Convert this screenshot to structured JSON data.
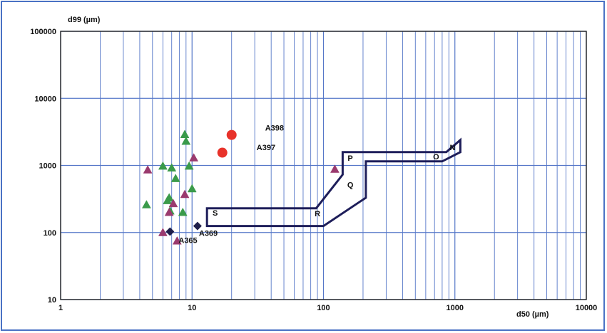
{
  "chart_data": {
    "type": "scatter",
    "title": "",
    "xlabel": "d50 (µm)",
    "ylabel": "d99 (µm)",
    "x_scale": "log",
    "y_scale": "log",
    "xlim": [
      1,
      10000
    ],
    "ylim": [
      10,
      100000
    ],
    "x_ticks": [
      {
        "value": 1,
        "label": "1"
      },
      {
        "value": 10,
        "label": "10"
      },
      {
        "value": 100,
        "label": "100"
      },
      {
        "value": 1000,
        "label": "1000"
      },
      {
        "value": 10000,
        "label": "10000"
      }
    ],
    "y_ticks": [
      {
        "value": 10,
        "label": "10"
      },
      {
        "value": 100,
        "label": "100"
      },
      {
        "value": 1000,
        "label": "1000"
      },
      {
        "value": 10000,
        "label": "10000"
      },
      {
        "value": 100000,
        "label": "100000"
      }
    ],
    "grid": true,
    "colors": {
      "frame": "#4a72c4",
      "grid": "#5577c8",
      "region": "#1e1e5a",
      "green_triangle": "#3a9a4a",
      "purple_triangle": "#9a3a6e",
      "red_circle": "#e8322a",
      "diamond": "#1e1e4a"
    },
    "series": [
      {
        "marker": "triangle",
        "color": "#3a9a4a",
        "points": [
          {
            "x": 4.5,
            "y": 260
          },
          {
            "x": 6.0,
            "y": 980
          },
          {
            "x": 6.5,
            "y": 300
          },
          {
            "x": 6.7,
            "y": 330
          },
          {
            "x": 6.8,
            "y": 210
          },
          {
            "x": 7.0,
            "y": 920
          },
          {
            "x": 7.5,
            "y": 640
          },
          {
            "x": 8.5,
            "y": 200
          },
          {
            "x": 8.8,
            "y": 2900
          },
          {
            "x": 9.0,
            "y": 2300
          },
          {
            "x": 9.5,
            "y": 980
          },
          {
            "x": 10.0,
            "y": 450
          }
        ]
      },
      {
        "marker": "triangle",
        "color": "#9a3a6e",
        "points": [
          {
            "x": 4.6,
            "y": 860
          },
          {
            "x": 6.0,
            "y": 100
          },
          {
            "x": 6.7,
            "y": 200
          },
          {
            "x": 7.2,
            "y": 270
          },
          {
            "x": 7.7,
            "y": 75
          },
          {
            "x": 8.8,
            "y": 370
          },
          {
            "x": 10.3,
            "y": 1300
          },
          {
            "x": 122,
            "y": 880
          }
        ]
      },
      {
        "marker": "circle",
        "color": "#e8322a",
        "points": [
          {
            "x": 17,
            "y": 1550,
            "label": "A397"
          },
          {
            "x": 20,
            "y": 2850,
            "label": "A398"
          }
        ]
      },
      {
        "marker": "diamond",
        "color": "#1e1e4a",
        "points": [
          {
            "x": 6.8,
            "y": 103,
            "label": "A365"
          },
          {
            "x": 11,
            "y": 125,
            "label": "A369"
          }
        ]
      }
    ],
    "regions": [
      {
        "name": "classification-zones",
        "polygon": [
          [
            13,
            125
          ],
          [
            100,
            125
          ],
          [
            210,
            330
          ],
          [
            210,
            1150
          ],
          [
            800,
            1150
          ],
          [
            1100,
            1580
          ],
          [
            1100,
            2400
          ],
          [
            860,
            1580
          ],
          [
            140,
            1580
          ],
          [
            140,
            730
          ],
          [
            88,
            230
          ],
          [
            13,
            230
          ]
        ],
        "labels": [
          {
            "text": "S",
            "x": 15,
            "y": 178
          },
          {
            "text": "R",
            "x": 90,
            "y": 175
          },
          {
            "text": "Q",
            "x": 160,
            "y": 470
          },
          {
            "text": "P",
            "x": 160,
            "y": 1170
          },
          {
            "text": "O",
            "x": 720,
            "y": 1230
          },
          {
            "text": "N",
            "x": 960,
            "y": 1700
          }
        ]
      }
    ]
  }
}
